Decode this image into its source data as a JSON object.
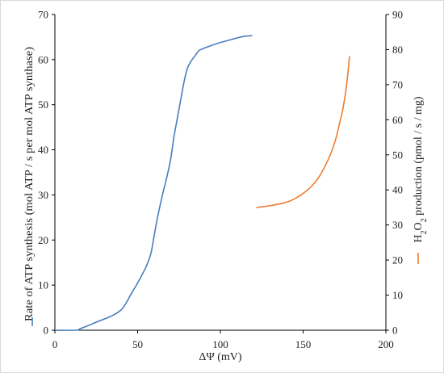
{
  "chart_data": {
    "type": "line",
    "title": "",
    "xlabel": "ΔΨ (mV)",
    "xlim": [
      0,
      200
    ],
    "x_ticks": [
      "0",
      "50",
      "100",
      "150",
      "200"
    ],
    "ylabel_left": "Rate of ATP synthesis (mol ATP / s per mol ATP synthase)",
    "ylim_left": [
      0,
      70
    ],
    "y_ticks_left": [
      "0",
      "10",
      "20",
      "30",
      "40",
      "50",
      "60",
      "70"
    ],
    "ylabel_right": {
      "prefix": "H",
      "sub1": "2",
      "mid": "O",
      "sub2": "2",
      "suffix": " production (pmol / s / mg)"
    },
    "ylim_right": [
      0,
      90
    ],
    "y_ticks_right": [
      "0",
      "10",
      "20",
      "30",
      "40",
      "50",
      "60",
      "70",
      "80",
      "90"
    ],
    "grid": false,
    "legend": "along y-axis labels",
    "series": [
      {
        "axis": "left",
        "color": "#4a7ebb",
        "x": [
          0,
          13,
          15,
          20,
          25,
          30,
          35,
          40,
          43,
          46,
          50,
          55,
          58,
          60,
          62,
          65,
          68,
          70,
          72,
          75,
          78,
          80,
          82,
          85,
          87,
          90,
          95,
          100,
          105,
          110,
          115,
          119
        ],
        "y": [
          0,
          0,
          0.3,
          1.0,
          1.8,
          2.5,
          3.3,
          4.5,
          6,
          8,
          10.5,
          14,
          17,
          21,
          25,
          30,
          34.5,
          38,
          43,
          49,
          55,
          58,
          59.5,
          61,
          62,
          62.5,
          63.2,
          63.8,
          64.3,
          64.8,
          65.2,
          65.3
        ]
      },
      {
        "axis": "right",
        "color": "#ed7d31",
        "x": [
          122,
          130,
          140,
          145,
          150,
          155,
          160,
          165,
          168,
          170,
          172,
          174,
          176,
          177,
          178
        ],
        "y": [
          35,
          35.5,
          36.5,
          37.5,
          39,
          41,
          44,
          48.5,
          52,
          55,
          59,
          63,
          69,
          73,
          78
        ]
      }
    ]
  }
}
